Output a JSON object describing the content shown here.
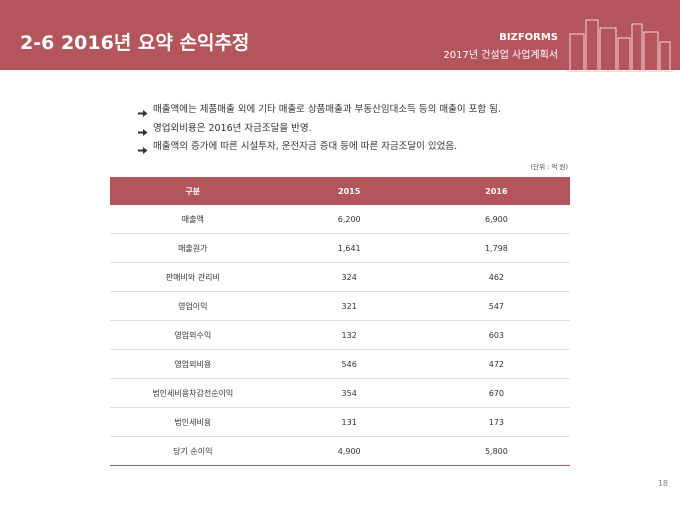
{
  "header": {
    "title": "2-6 2016년 요약 손익추정",
    "brand": "BIZFORMS",
    "subtitle": "2017년 건설업 사업계획서"
  },
  "bullets": [
    "매출액에는 제품매출 외에 기타 매출로 상품매출과 부동산임대소득 등의 매출이 포함 됨.",
    "영업외비용은 2016년 자금조달을 반영.",
    "매출액의 증가에 따른 시설투자, 운전자금 증대 등에 따른 자금조달이 있었음."
  ],
  "unit": "(단위 : 억 원)",
  "table": {
    "header": [
      "구분",
      "2015",
      "2016"
    ],
    "rows": [
      [
        "매출액",
        "6,200",
        "6,900"
      ],
      [
        "매출원가",
        "1,641",
        "1,798"
      ],
      [
        "판매비와 관리비",
        "324",
        "462"
      ],
      [
        "영업이익",
        "321",
        "547"
      ],
      [
        "영업외수익",
        "132",
        "603"
      ],
      [
        "영업외비용",
        "546",
        "472"
      ],
      [
        "법인세비용차감전순이익",
        "354",
        "670"
      ],
      [
        "법인세비용",
        "131",
        "173"
      ],
      [
        "당기 순이익",
        "4,900",
        "5,800"
      ]
    ]
  },
  "page_number": "18"
}
